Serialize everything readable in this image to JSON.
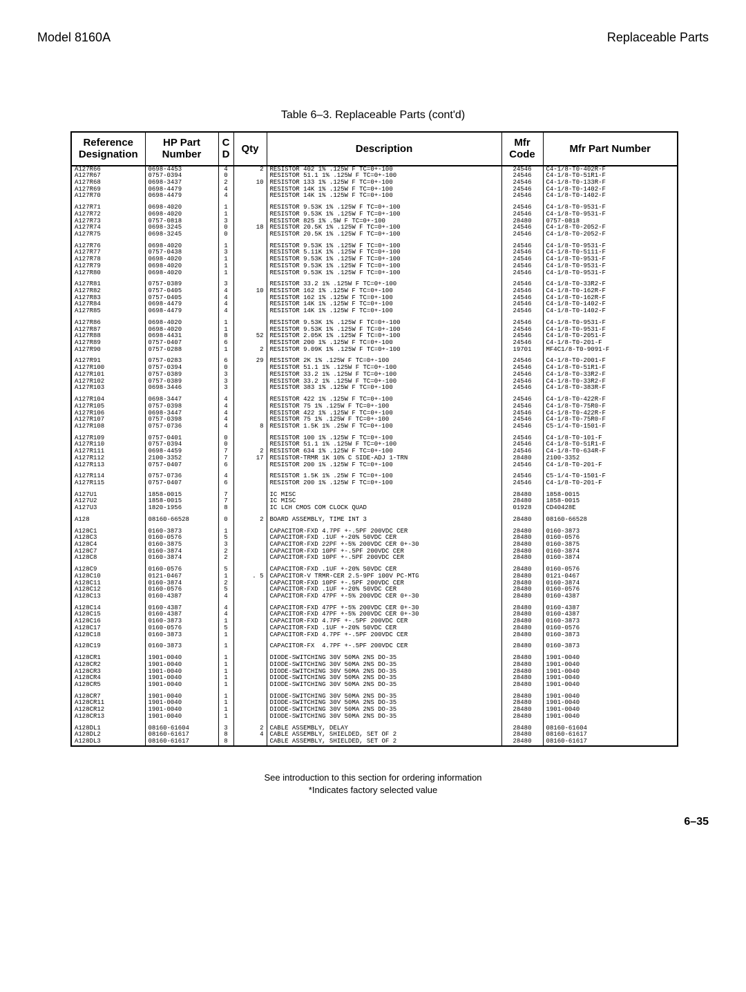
{
  "header": {
    "left": "Model 8160A",
    "right": "Replaceable Parts"
  },
  "caption": "Table 6–3. Replaceable Parts (cont'd)",
  "footnote": {
    "line1": "See introduction to this section for ordering information",
    "line2": "*Indicates factory selected value"
  },
  "pagenum": "6–35",
  "columns": [
    "Reference\nDesignation",
    "HP Part\nNumber",
    "C\nD",
    "Qty",
    "Description",
    "Mfr\nCode",
    "Mfr Part Number"
  ],
  "groups": [
    [
      [
        "A127R66",
        "0698-4453",
        "4",
        "2",
        "RESISTOR 402 1% .125W F TC=0+-100",
        "24546",
        "C4-1/8-T0-402R-F"
      ],
      [
        "A127R67",
        "0757-0394",
        "0",
        "",
        "RESISTOR 51.1 1% .125W F TC=0+-100",
        "24546",
        "C4-1/8-T0-51R1-F"
      ],
      [
        "A127R68",
        "0698-3437",
        "2",
        "10",
        "RESISTOR 133 1% .125W F TC=0+-100",
        "24546",
        "C4-1/8-T0-133R-F"
      ],
      [
        "A127R69",
        "0698-4479",
        "4",
        "",
        "RESISTOR 14K 1% .125W F TC=0+-100",
        "24546",
        "C4-1/8-T0-1402-F"
      ],
      [
        "A127R70",
        "0698-4479",
        "4",
        "",
        "RESISTOR 14K 1% .125W F TC=0+-100",
        "24546",
        "C4-1/8-T0-1402-F"
      ]
    ],
    [
      [
        "A127R71",
        "0698-4020",
        "1",
        "",
        "RESISTOR 9.53K 1% .125W F TC=0+-100",
        "24546",
        "C4-1/8-T0-9531-F"
      ],
      [
        "A127R72",
        "0698-4020",
        "1",
        "",
        "RESISTOR 9.53K 1% .125W F TC=0+-100",
        "24546",
        "C4-1/8-T0-9531-F"
      ],
      [
        "A127R73",
        "0757-0818",
        "3",
        "",
        "RESISTOR 825 1% .5W F TC=0+-100",
        "28480",
        "0757-0818"
      ],
      [
        "A127R74",
        "0698-3245",
        "0",
        "18",
        "RESISTOR 20.5K 1% .125W F TC=0+-100",
        "24546",
        "C4-1/8-T0-2052-F"
      ],
      [
        "A127R75",
        "0698-3245",
        "0",
        "",
        "RESISTOR 20.5K 1% .125W F TC=0+-100",
        "24546",
        "C4-1/8-T0-2052-F"
      ]
    ],
    [
      [
        "A127R76",
        "0698-4020",
        "1",
        "",
        "RESISTOR 9.53K 1% .125W F TC=0+-100",
        "24546",
        "C4-1/8-T0-9531-F"
      ],
      [
        "A127R77",
        "0757-0438",
        "3",
        "",
        "RESISTOR 5.11K 1% .125W F TC=0+-100",
        "24546",
        "C4-1/8-T0-5111-F"
      ],
      [
        "A127R78",
        "0698-4020",
        "1",
        "",
        "RESISTOR 9.53K 1% .125W F TC=0+-100",
        "24546",
        "C4-1/8-T0-9531-F"
      ],
      [
        "A127R79",
        "0698-4020",
        "1",
        "",
        "RESISTOR 9.53K 1% .125W F TC=0+-100",
        "24546",
        "C4-1/8-T0-9531-F"
      ],
      [
        "A127R80",
        "0698-4020",
        "1",
        "",
        "RESISTOR 9.53K 1% .125W F TC=0+-100",
        "24546",
        "C4-1/8-T0-9531-F"
      ]
    ],
    [
      [
        "A127R81",
        "0757-0389",
        "3",
        "",
        "RESISTOR 33.2 1% .125W F TC=0+-100",
        "24546",
        "C4-1/8-T0-33R2-F"
      ],
      [
        "A127R82",
        "0757-0405",
        "4",
        "10",
        "RESISTOR 162 1% .125W F TC=0+-100",
        "24546",
        "C4-1/8-T0-162R-F"
      ],
      [
        "A127R83",
        "0757-0405",
        "4",
        "",
        "RESISTOR 162 1% .125W F TC=0+-100",
        "24546",
        "C4-1/8-T0-162R-F"
      ],
      [
        "A127R84",
        "0698-4479",
        "4",
        "",
        "RESISTOR 14K 1% .125W F TC=0+-100",
        "24546",
        "C4-1/8-T0-1402-F"
      ],
      [
        "A127R85",
        "0698-4479",
        "4",
        "",
        "RESISTOR 14K 1% .125W F TC=0+-100",
        "24546",
        "C4-1/8-T0-1402-F"
      ]
    ],
    [
      [
        "A127R86",
        "0698-4020",
        "1",
        "",
        "RESISTOR 9.53K 1% .125W F TC=0+-100",
        "24546",
        "C4-1/8-T0-9531-F"
      ],
      [
        "A127R87",
        "0698-4020",
        "1",
        "",
        "RESISTOR 9.53K 1% .125W F TC=0+-100",
        "24546",
        "C4-1/8-T0-9531-F"
      ],
      [
        "A127R88",
        "0698-4431",
        "8",
        "52",
        "RESISTOR 2.05K 1% .125W F TC=0+-100",
        "24546",
        "C4-1/8-T0-2051-F"
      ],
      [
        "A127R89",
        "0757-0407",
        "6",
        "",
        "RESISTOR 200 1% .125W F TC=0+-100",
        "24546",
        "C4-1/8-T0-201-F"
      ],
      [
        "A127R90",
        "0757-0288",
        "1",
        "2",
        "RESISTOR 9.09K 1% .125W F TC=0+-100",
        "19701",
        "MF4C1/8-T0-9091-F"
      ]
    ],
    [
      [
        "A127R91",
        "0757-0283",
        "6",
        "29",
        "RESISTOR 2K 1% .125W F TC=0+-100",
        "24546",
        "C4-1/8-T0-2001-F"
      ],
      [
        "A127R100",
        "0757-0394",
        "0",
        "",
        "RESISTOR 51.1 1% .125W F TC=0+-100",
        "24546",
        "C4-1/8-T0-51R1-F"
      ],
      [
        "A127R101",
        "0757-0389",
        "3",
        "",
        "RESISTOR 33.2 1% .125W F TC=0+-100",
        "24546",
        "C4-1/8-T0-33R2-F"
      ],
      [
        "A127R102",
        "0757-0389",
        "3",
        "",
        "RESISTOR 33.2 1% .125W F TC=0+-100",
        "24546",
        "C4-1/8-T0-33R2-F"
      ],
      [
        "A127R103",
        "0698-3446",
        "3",
        "",
        "RESISTOR 383 1% .125W F TC=0+-100",
        "24546",
        "C4-1/8-T0-383R-F"
      ]
    ],
    [
      [
        "A127R104",
        "0698-3447",
        "4",
        "",
        "RESISTOR 422 1% .125W F TC=0+-100",
        "24546",
        "C4-1/8-T0-422R-F"
      ],
      [
        "A127R105",
        "0757-0398",
        "4",
        "",
        "RESISTOR 75 1% .125W F TC=0+-100",
        "24546",
        "C4-1/8-T0-75R0-F"
      ],
      [
        "A127R106",
        "0698-3447",
        "4",
        "",
        "RESISTOR 422 1% .125W F TC=0+-100",
        "24546",
        "C4-1/8-T0-422R-F"
      ],
      [
        "A127R107",
        "0757-0398",
        "4",
        "",
        "RESISTOR 75 1% .125W F TC=0+-100",
        "24546",
        "C4-1/8-T0-75R0-F"
      ],
      [
        "A127R108",
        "0757-0736",
        "4",
        "8",
        "RESISTOR 1.5K 1% .25W F TC=0+-100",
        "24546",
        "C5-1/4-T0-1501-F"
      ]
    ],
    [
      [
        "A127R109",
        "0757-0401",
        "0",
        "",
        "RESISTOR 100 1% .125W F TC=0+-100",
        "24546",
        "C4-1/8-T0-101-F"
      ],
      [
        "A127R110",
        "0757-0394",
        "0",
        "",
        "RESISTOR 51.1 1% .125W F TC=0+-100",
        "24546",
        "C4-1/8-T0-51R1-F"
      ],
      [
        "A127R111",
        "0698-4459",
        "7",
        "2",
        "RESISTOR 634 1% .125W F TC=0+-100",
        "24546",
        "C4-1/8-T0-634R-F"
      ],
      [
        "A127R112",
        "2100-3352",
        "7",
        "17",
        "RESISTOR-TRMR 1K 10% C SIDE-ADJ 1-TRN",
        "28480",
        "2100-3352"
      ],
      [
        "A127R113",
        "0757-0407",
        "6",
        "",
        "RESISTOR 200 1% .125W F TC=0+-100",
        "24546",
        "C4-1/8-T0-201-F"
      ]
    ],
    [
      [
        "A127R114",
        "0757-0736",
        "4",
        "",
        "RESISTOR 1.5K 1% .25W F TC=0+-100",
        "24546",
        "C5-1/4-T0-1501-F"
      ],
      [
        "A127R115",
        "0757-0407",
        "6",
        "",
        "RESISTOR 200 1% .125W F TC=0+-100",
        "24546",
        "C4-1/8-T0-201-F"
      ]
    ],
    [
      [
        "A127U1",
        "1858-0015",
        "7",
        "",
        "IC MISC",
        "28480",
        "1858-0015"
      ],
      [
        "A127U2",
        "1858-0015",
        "7",
        "",
        "IC MISC",
        "28480",
        "1858-0015"
      ],
      [
        "A127U3",
        "1820-1956",
        "8",
        "",
        "IC LCH CMOS COM CLOCK QUAD",
        "01928",
        "CD40428E"
      ]
    ],
    [
      [
        "A128",
        "08160-66528",
        "0",
        "2",
        "BOARD ASSEMBLY, TIME INT 3",
        "28480",
        "08160-66528"
      ]
    ],
    [
      [
        "A128C1",
        "0160-3873",
        "1",
        "",
        "CAPACITOR-FXD 4.7PF +-.5PF 200VDC CER",
        "28480",
        "0160-3873"
      ],
      [
        "A128C3",
        "0160-0576",
        "5",
        "",
        "CAPACITOR-FXD .1UF +-20% 50VDC CER",
        "28480",
        "0160-0576"
      ],
      [
        "A128C4",
        "0160-3875",
        "3",
        "",
        "CAPACITOR-FXD 22PF +-5% 200VDC CER 0+-30",
        "28480",
        "0160-3875"
      ],
      [
        "A128C7",
        "0160-3874",
        "2",
        "",
        "CAPACITOR-FXD 10PF +-.5PF 200VDC CER",
        "28480",
        "0160-3874"
      ],
      [
        "A128C8",
        "0160-3874",
        "2",
        "",
        "CAPACITOR-FXD 10PF +-.5PF 200VDC CER",
        "28480",
        "0160-3874"
      ]
    ],
    [
      [
        "A128C9",
        "0160-0576",
        "5",
        "",
        "CAPACITOR-FXD .1UF +-20% 50VDC CER",
        "28480",
        "0160-0576"
      ],
      [
        "A128C10",
        "0121-0467",
        "1",
        ". 5",
        "CAPACITOR-V TRMR-CER 2.5-9PF 100V PC-MTG",
        "28480",
        "0121-0467"
      ],
      [
        "A128C11",
        "0160-3874",
        "2",
        "",
        "CAPACITOR-FXD 10PF +-.5PF 200VDC CER",
        "28480",
        "0160-3874"
      ],
      [
        "A128C12",
        "0160-0576",
        "5",
        "",
        "CAPACITOR-FXD .1UF +-20% 50VDC CER",
        "28480",
        "0160-0576"
      ],
      [
        "A128C13",
        "0160-4387",
        "4",
        "",
        "CAPACITOR-FXD 47PF +-5% 200VDC CER 0+-30",
        "28480",
        "0160-4387"
      ]
    ],
    [
      [
        "A128C14",
        "0160-4387",
        "4",
        "",
        "CAPACITOR-FXD 47PF +-5% 200VDC CER 0+-30",
        "28480",
        "0160-4387"
      ],
      [
        "A128C15",
        "0160-4387",
        "4",
        "",
        "CAPACITOR-FXD 47PF +-5% 200VDC CER 0+-30",
        "28480",
        "0160-4387"
      ],
      [
        "A128C16",
        "0160-3873",
        "1",
        "",
        "CAPACITOR-FXD 4.7PF +-.5PF 200VDC CER",
        "28480",
        "0160-3873"
      ],
      [
        "A128C17",
        "0160-0576",
        "5",
        "",
        "CAPACITOR-FXD .1UF +-20% 50VDC CER",
        "28480",
        "0160-0576"
      ],
      [
        "A128C18",
        "0160-3873",
        "1",
        "",
        "CAPACITOR-FXD 4.7PF +-.5PF 200VDC CER",
        "28480",
        "0160-3873"
      ]
    ],
    [
      [
        "A128C19",
        "0160-3873",
        "1",
        "",
        "CAPACITOR-FX  4.7PF +-.5PF 200VDC CER",
        "28480",
        "0160-3873"
      ]
    ],
    [
      [
        "A128CR1",
        "1901-0040",
        "1",
        "",
        "DIODE-SWITCHING 30V 50MA 2NS DO-35",
        "28480",
        "1901-0040"
      ],
      [
        "A128CR2",
        "1901-0040",
        "1",
        "",
        "DIODE-SWITCHING 30V 50MA 2NS DO-35",
        "28480",
        "1901-0040"
      ],
      [
        "A128CR3",
        "1901-0040",
        "1",
        "",
        "DIODE-SWITCHING 30V 50MA 2NS DO-35",
        "28480",
        "1901-0040"
      ],
      [
        "A128CR4",
        "1901-0040",
        "1",
        "",
        "DIODE-SWITCHING 30V 50MA 2NS DO-35",
        "28480",
        "1901-0040"
      ],
      [
        "A128CR5",
        "1901-0040",
        "1",
        "",
        "DIODE-SWITCHING 30V 50MA 2NS DO-35",
        "28480",
        "1901-0040"
      ]
    ],
    [
      [
        "A128CR7",
        "1901-0040",
        "1",
        "",
        "DIODE-SWITCHING 30V 50MA 2NS DO-35",
        "28480",
        "1901-0040"
      ],
      [
        "A128CR11",
        "1901-0040",
        "1",
        "",
        "DIODE-SWITCHING 30V 50MA 2NS DO-35",
        "28480",
        "1901-0040"
      ],
      [
        "A128CR12",
        "1901-0040",
        "1",
        "",
        "DIODE-SWITCHING 30V 50MA 2NS DO-35",
        "28480",
        "1901-0040"
      ],
      [
        "A128CR13",
        "1901-0040",
        "1",
        "",
        "DIODE-SWITCHING 30V 50MA 2NS DO-35",
        "28480",
        "1901-0040"
      ]
    ],
    [
      [
        "A128DL1",
        "08160-61604",
        "3",
        "2",
        "CABLE ASSEMBLY, DELAY",
        "28480",
        "08160-61604"
      ],
      [
        "A128DL2",
        "08160-61617",
        "8",
        "4",
        "CABLE ASSEMBLY, SHIELDED, SET OF 2",
        "28480",
        "08160-61617"
      ],
      [
        "A128DL3",
        "08160-61617",
        "8",
        "",
        "CABLE ASSEMBLY, SHIELDED, SET OF 2",
        "28480",
        "08160-61617"
      ]
    ]
  ]
}
